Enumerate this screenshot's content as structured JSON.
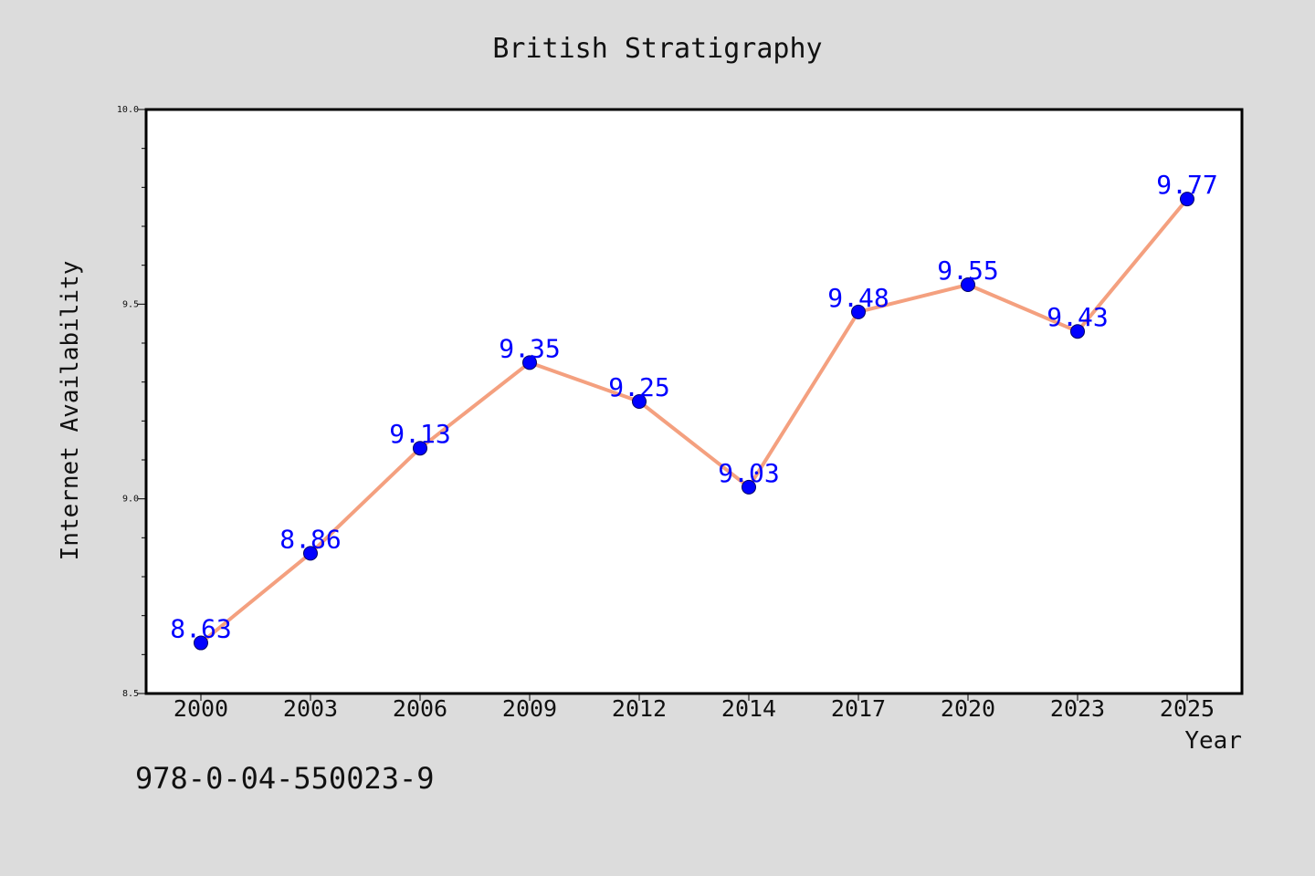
{
  "chart_data": {
    "type": "line",
    "title": "British Stratigraphy",
    "xlabel": "Year",
    "ylabel": "Internet Availability",
    "categories": [
      "2000",
      "2003",
      "2006",
      "2009",
      "2012",
      "2014",
      "2017",
      "2020",
      "2023",
      "2025"
    ],
    "series": [
      {
        "values": [
          8.63,
          8.86,
          9.13,
          9.35,
          9.25,
          9.03,
          9.48,
          9.55,
          9.43,
          9.77
        ],
        "labels": [
          "8.63",
          "8.86",
          "9.13",
          "9.35",
          "9.25",
          "9.03",
          "9.48",
          "9.55",
          "9.43",
          "9.77"
        ],
        "line_color": "#f4a07f",
        "marker_color": "#0000ff"
      }
    ],
    "ylim": [
      8.5,
      10.0
    ],
    "yticks": [
      8.5,
      9.0,
      9.5,
      10.0
    ],
    "ytick_labels": [
      "8.5",
      "9.0",
      "9.5",
      "10.0"
    ],
    "y_minor_step": 0.1,
    "grid": false,
    "legend": "none",
    "annotation": "978-0-04-550023-9"
  },
  "colors": {
    "background": "#dcdcdc",
    "plot_area": "#ffffff",
    "line": "#f4a07f",
    "marker": "#0000ff",
    "data_label": "#0000ff"
  }
}
